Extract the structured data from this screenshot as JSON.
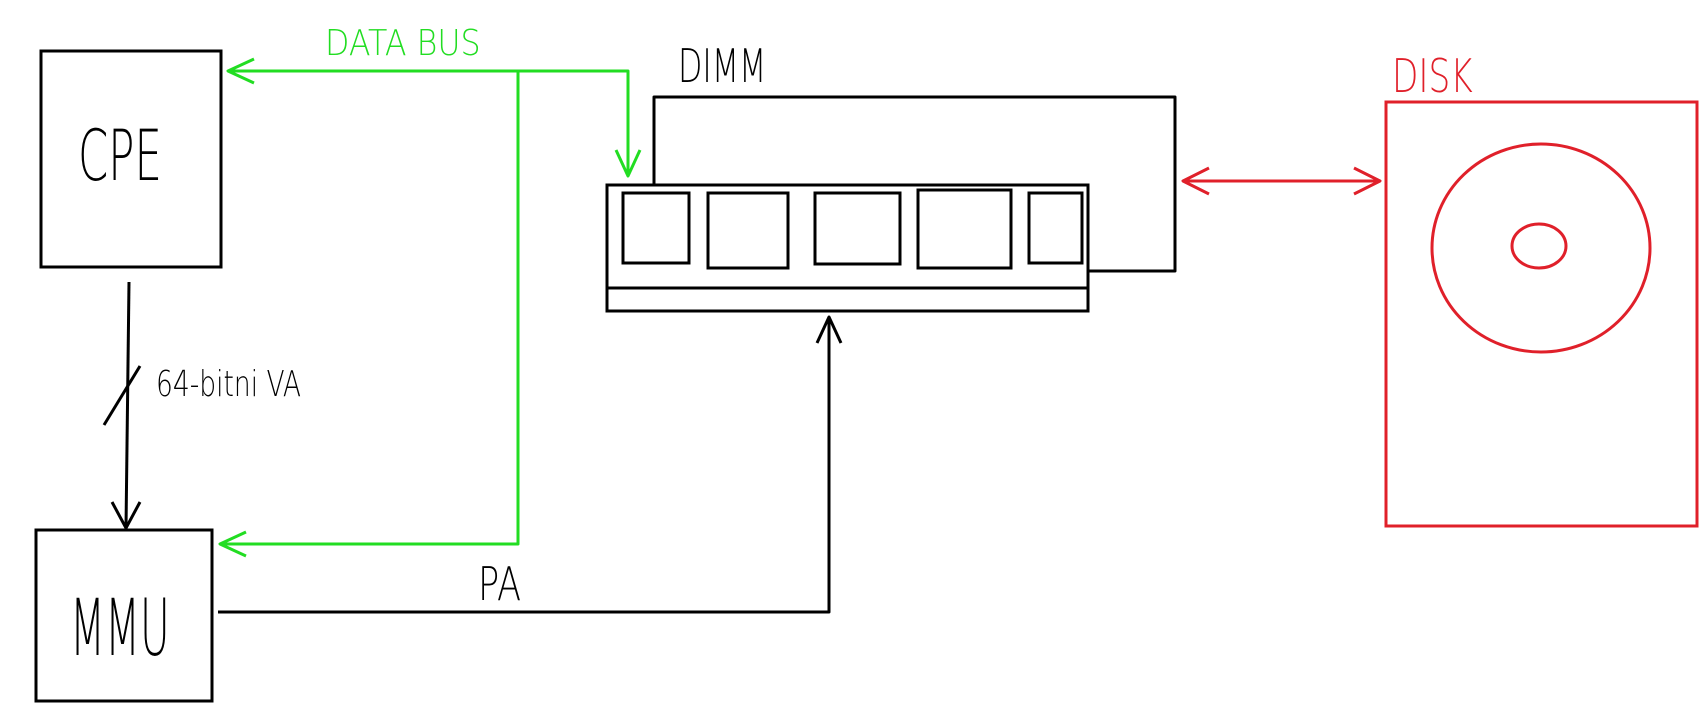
{
  "labels": {
    "cpe": "CPE",
    "mmu": "MMU",
    "data_bus": "DATA BUS",
    "dimm": "DIMM",
    "disk": "DISK",
    "va": "64-bitni VA",
    "pa": "PA"
  },
  "colors": {
    "ink": "#000000",
    "data_bus": "#22dd22",
    "disk": "#e0202a"
  }
}
